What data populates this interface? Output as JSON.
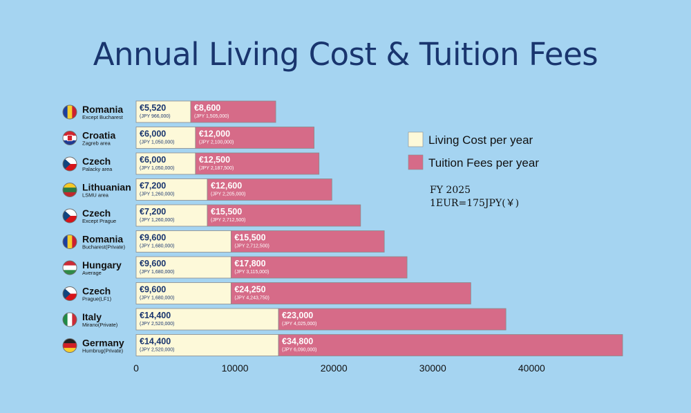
{
  "colors": {
    "background": "#a5d4f1",
    "living": "#fdf9d9",
    "tuition": "#d66b88",
    "title": "#19356e",
    "living_text": "#19356e",
    "tuition_text": "#ffffff",
    "bar_border": "#8a8a8a"
  },
  "chart_data": {
    "type": "bar",
    "orientation": "horizontal",
    "stacked": true,
    "title": "Annual Living Cost & Tuition Fees",
    "xlim": [
      0,
      50000
    ],
    "xticks": [
      0,
      10000,
      20000,
      30000,
      40000
    ],
    "legend_position": "right",
    "categories": [
      {
        "name": "Romania",
        "sub": "Except Bucharest",
        "flag": "romania-flag-icon"
      },
      {
        "name": "Croatia",
        "sub": "Zagreb area",
        "flag": "croatia-flag-icon"
      },
      {
        "name": "Czech",
        "sub": "Palacky area",
        "flag": "czech-flag-icon"
      },
      {
        "name": "Lithuanian",
        "sub": "LSMU area",
        "flag": "lithuania-flag-icon"
      },
      {
        "name": "Czech",
        "sub": "Except Prague",
        "flag": "czech-flag-icon"
      },
      {
        "name": "Romania",
        "sub": "Bucharest(Private)",
        "flag": "romania-flag-icon"
      },
      {
        "name": "Hungary",
        "sub": "Average",
        "flag": "hungary-flag-icon"
      },
      {
        "name": "Czech",
        "sub": "Prague(LF1)",
        "flag": "czech-flag-icon"
      },
      {
        "name": "Italy",
        "sub": "Mirano(Private)",
        "flag": "italy-flag-icon"
      },
      {
        "name": "Germany",
        "sub": "Humbrug(Private)",
        "flag": "germany-flag-icon"
      }
    ],
    "series": [
      {
        "name": "Living Cost per year",
        "values": [
          5520,
          6000,
          6000,
          7200,
          7200,
          9600,
          9600,
          9600,
          14400,
          14400
        ],
        "labels": [
          "€5,520",
          "€6,000",
          "€6,000",
          "€7,200",
          "€7,200",
          "€9,600",
          "€9,600",
          "€9,600",
          "€14,400",
          "€14,400"
        ],
        "sublabels": [
          "(JPY 966,000)",
          "(JPY 1,050,000)",
          "(JPY 1,050,000)",
          "(JPY 1,260,000)",
          "(JPY 1,260,000)",
          "(JPY 1,680,000)",
          "(JPY 1,680,000)",
          "(JPY 1,680,000)",
          "(JPY 2,520,000)",
          "(JPY 2,520,000)"
        ]
      },
      {
        "name": "Tuition Fees per year",
        "values": [
          8600,
          12000,
          12500,
          12600,
          15500,
          15500,
          17800,
          24250,
          23000,
          34800
        ],
        "labels": [
          "€8,600",
          "€12,000",
          "€12,500",
          "€12,600",
          "€15,500",
          "€15,500",
          "€17,800",
          "€24,250",
          "€23,000",
          "€34,800"
        ],
        "sublabels": [
          "(JPY 1,505,000)",
          "(JPY 2,100,000)",
          "(JPY 2,187,500)",
          "(JPY 2,205,000)",
          "(JPY 2,712,500)",
          "(JPY 2,712,500)",
          "(JPY 3,115,000)",
          "(JPY 4,243,750)",
          "(JPY 4,025,000)",
          "(JPY 6,090,000)"
        ]
      }
    ]
  },
  "note": {
    "line1": "FY 2025",
    "line2": "1EUR=175JPY(￥)"
  }
}
